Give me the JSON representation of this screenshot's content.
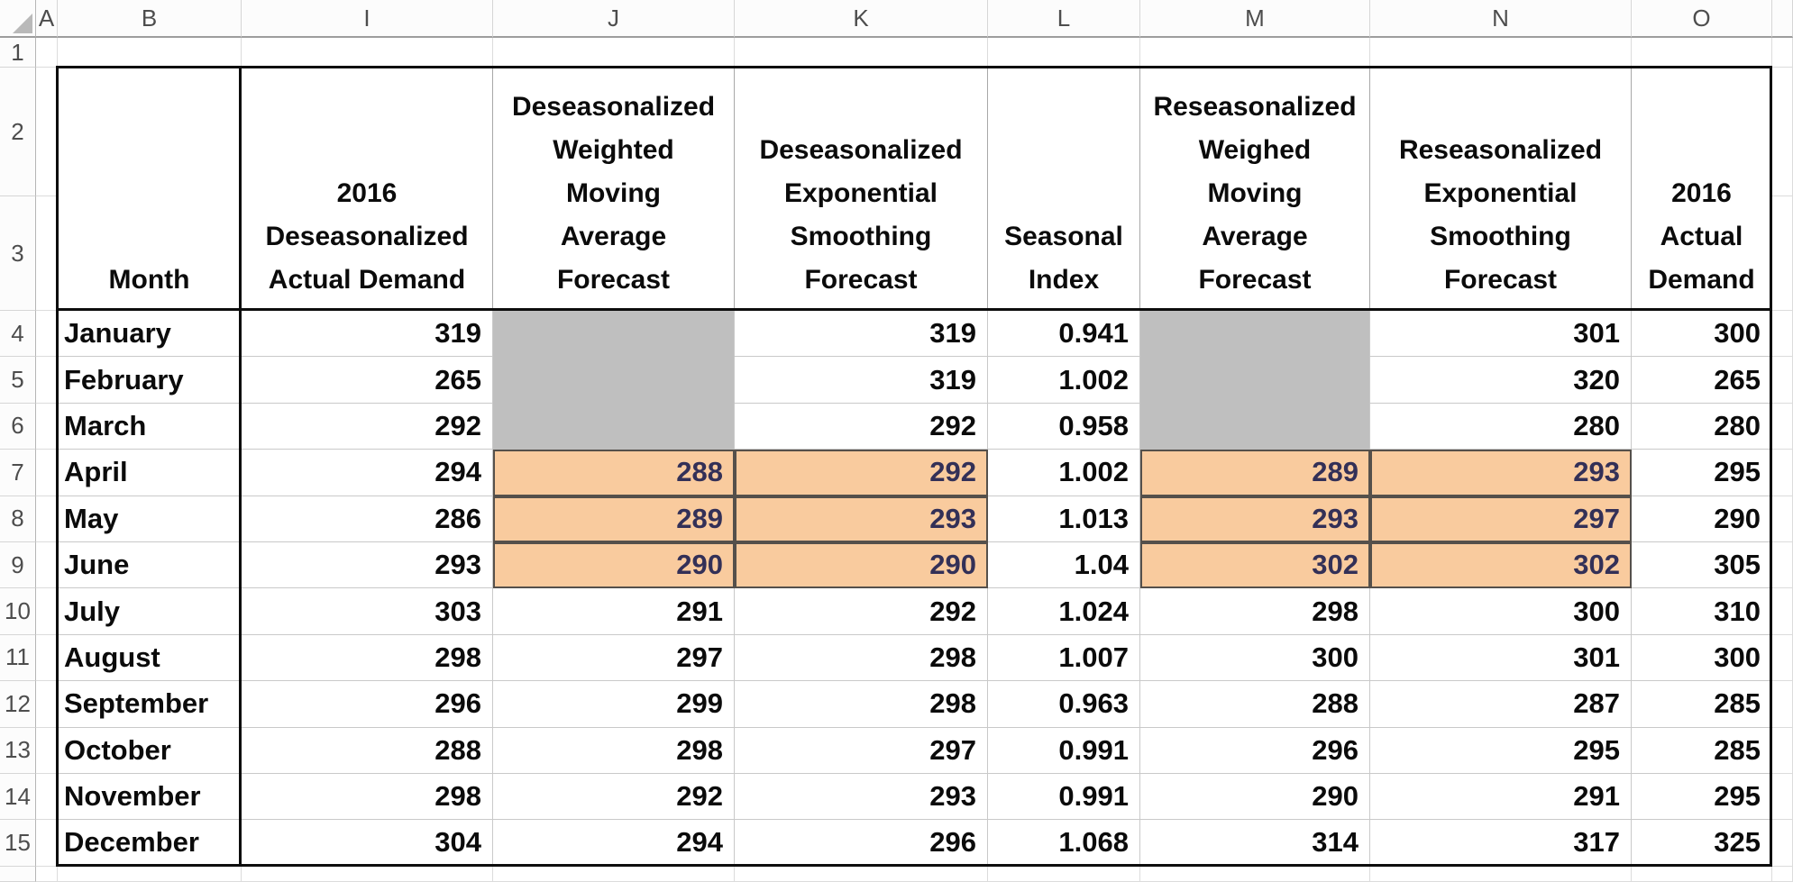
{
  "sheet": {
    "column_letters": [
      "A",
      "B",
      "I",
      "J",
      "K",
      "L",
      "M",
      "N",
      "O"
    ],
    "row_numbers": [
      "1",
      "2",
      "3",
      "4",
      "5",
      "6",
      "7",
      "8",
      "9",
      "10",
      "11",
      "12",
      "13",
      "14",
      "15"
    ],
    "header": {
      "b": "Month",
      "i": "2016\nDeseasonalized\nActual Demand",
      "j": "Deseasonalized\nWeighted\nMoving\nAverage\nForecast",
      "k": "Deseasonalized\nExponential\nSmoothing\nForecast",
      "l": "Seasonal\nIndex",
      "m": "Reseasonalized\nWeighed\nMoving\nAverage\nForecast",
      "n": "Reseasonalized\nExponential\nSmoothing\nForecast",
      "o": "2016\nActual\nDemand"
    },
    "rows": [
      {
        "month": "January",
        "i": "319",
        "j": "",
        "k": "319",
        "l": "0.941",
        "m": "",
        "n": "301",
        "o": "300"
      },
      {
        "month": "February",
        "i": "265",
        "j": "",
        "k": "319",
        "l": "1.002",
        "m": "",
        "n": "320",
        "o": "265"
      },
      {
        "month": "March",
        "i": "292",
        "j": "",
        "k": "292",
        "l": "0.958",
        "m": "",
        "n": "280",
        "o": "280"
      },
      {
        "month": "April",
        "i": "294",
        "j": "288",
        "k": "292",
        "l": "1.002",
        "m": "289",
        "n": "293",
        "o": "295"
      },
      {
        "month": "May",
        "i": "286",
        "j": "289",
        "k": "293",
        "l": "1.013",
        "m": "293",
        "n": "297",
        "o": "290"
      },
      {
        "month": "June",
        "i": "293",
        "j": "290",
        "k": "290",
        "l": "1.04",
        "m": "302",
        "n": "302",
        "o": "305"
      },
      {
        "month": "July",
        "i": "303",
        "j": "291",
        "k": "292",
        "l": "1.024",
        "m": "298",
        "n": "300",
        "o": "310"
      },
      {
        "month": "August",
        "i": "298",
        "j": "297",
        "k": "298",
        "l": "1.007",
        "m": "300",
        "n": "301",
        "o": "300"
      },
      {
        "month": "September",
        "i": "296",
        "j": "299",
        "k": "298",
        "l": "0.963",
        "m": "288",
        "n": "287",
        "o": "285"
      },
      {
        "month": "October",
        "i": "288",
        "j": "298",
        "k": "297",
        "l": "0.991",
        "m": "296",
        "n": "295",
        "o": "285"
      },
      {
        "month": "November",
        "i": "298",
        "j": "292",
        "k": "293",
        "l": "0.991",
        "m": "290",
        "n": "291",
        "o": "295"
      },
      {
        "month": "December",
        "i": "304",
        "j": "294",
        "k": "296",
        "l": "1.068",
        "m": "314",
        "n": "317",
        "o": "325"
      }
    ],
    "highlights": {
      "gray_row_indexes": [
        0,
        1,
        2
      ],
      "gray_columns": [
        "j",
        "m"
      ],
      "orange_row_indexes": [
        3,
        4,
        5
      ],
      "orange_columns": [
        "j",
        "k",
        "m",
        "n"
      ],
      "gray_fill": "#BFBFBF",
      "orange_fill": "#F9CB9E",
      "orange_border": "#55504b",
      "orange_text": "#333057"
    }
  }
}
